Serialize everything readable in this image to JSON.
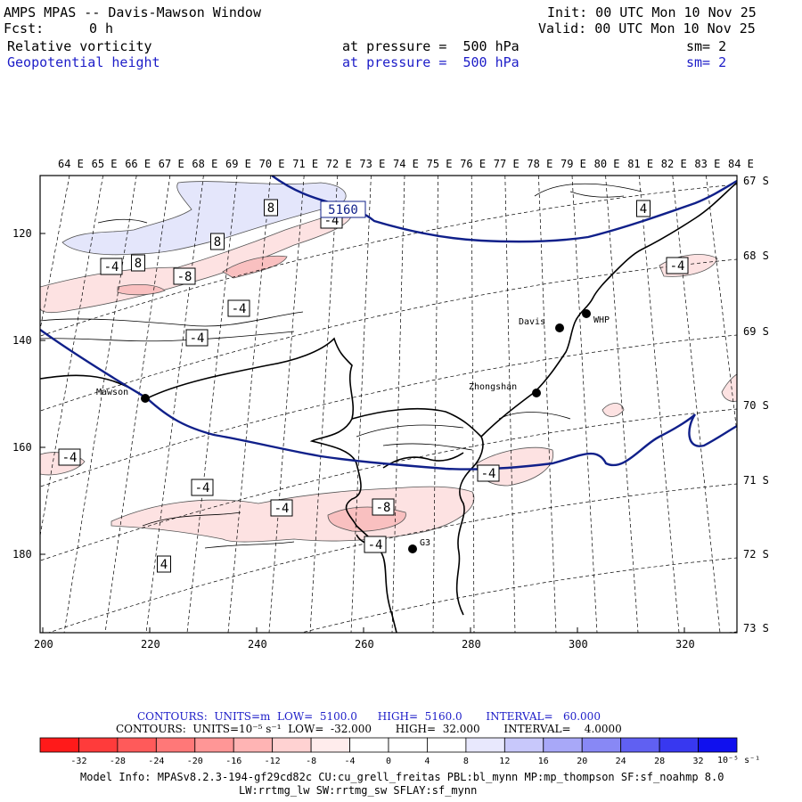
{
  "header": {
    "title": "AMPS MPAS -- Davis-Mawson Window",
    "fcst_label": "Fcst:",
    "fcst_value": "0 h",
    "init": "Init: 00 UTC Mon 10 Nov 25",
    "valid": "Valid: 00 UTC Mon 10 Nov 25",
    "field1_name": "Relative vorticity",
    "field1_level": "at pressure =  500 hPa",
    "field1_sm": "sm= 2",
    "field2_name": "Geopotential height",
    "field2_level": "at pressure =  500 hPa",
    "field2_sm": "sm= 2"
  },
  "map": {
    "lon_labels": [
      "64 E",
      "65 E",
      "66 E",
      "67 E",
      "68 E",
      "69 E",
      "70 E",
      "71 E",
      "72 E",
      "73 E",
      "74 E",
      "75 E",
      "76 E",
      "77 E",
      "78 E",
      "79 E",
      "80 E",
      "81 E",
      "82 E",
      "83 E",
      "84 E"
    ],
    "lat_labels": [
      "67 S",
      "68 S",
      "69 S",
      "70 S",
      "71 S",
      "72 S",
      "73 S"
    ],
    "y_ticks": [
      "120",
      "140",
      "160",
      "180"
    ],
    "x_ticks": [
      "200",
      "220",
      "240",
      "260",
      "280",
      "300",
      "320"
    ],
    "stations": [
      {
        "name": "Mawson"
      },
      {
        "name": "Davis"
      },
      {
        "name": "WHP"
      },
      {
        "name": "Zhongshan"
      },
      {
        "name": "G3"
      }
    ],
    "contour_labels": [
      "8",
      "8",
      "8",
      "-4",
      "-8",
      "-4",
      "-4",
      "4",
      "-4",
      "-4",
      "-4",
      "-4",
      "-4",
      "-8",
      "-4",
      "-4",
      "4",
      "-4",
      "-4"
    ],
    "height_label": "5160",
    "colors": {
      "height_contour": "#10208a",
      "coast": "#000000",
      "neg_fill_1": "#fde2e2",
      "neg_fill_2": "#f9c0c0",
      "pos_fill_1": "#e4e6fb"
    }
  },
  "footer": {
    "contours1": "CONTOURS:  UNITS=m  LOW=  5100.0      HIGH=  5160.0       INTERVAL=   60.000",
    "contours2": "CONTOURS:  UNITS=10⁻⁵ s⁻¹  LOW=  -32.000       HIGH=  32.000       INTERVAL=    4.0000",
    "colorbar_labels": [
      "-32",
      "-28",
      "-24",
      "-20",
      "-16",
      "-12",
      "-8",
      "-4",
      "0",
      "4",
      "8",
      "12",
      "16",
      "20",
      "24",
      "28",
      "32"
    ],
    "colorbar_units": "10⁻⁵ s⁻¹",
    "colorbar_colors": [
      "#ff1a1a",
      "#ff3b3b",
      "#ff5a5a",
      "#ff7878",
      "#ff9696",
      "#ffb4b4",
      "#ffd2d2",
      "#ffecec",
      "#ffffff",
      "#ffffff",
      "#e8e8fd",
      "#c8c8fb",
      "#a8a8f8",
      "#8888f5",
      "#6060f2",
      "#3838f0",
      "#1010ee"
    ],
    "model_info1": "Model Info: MPASv8.2.3-194-gf29cd82c CU:cu_grell_freitas PBL:bl_mynn MP:mp_thompson SF:sf_noahmp 8.0",
    "model_info2": "LW:rrtmg_lw SW:rrtmg_sw SFLAY:sf_mynn"
  }
}
